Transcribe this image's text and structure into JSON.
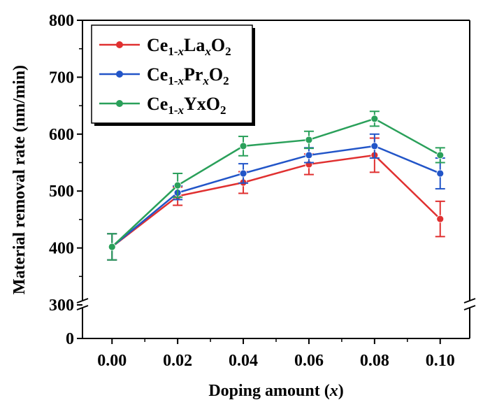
{
  "chart_data": {
    "type": "line",
    "title": "",
    "xlabel": "Doping amount (x)",
    "ylabel": "Material removal rate (nm/min)",
    "x": [
      0.0,
      0.02,
      0.04,
      0.06,
      0.08,
      0.1
    ],
    "x_tick_labels": [
      "0.00",
      "0.02",
      "0.04",
      "0.06",
      "0.08",
      "0.10"
    ],
    "y_tick_labels": [
      "0",
      "300",
      "400",
      "500",
      "600",
      "700",
      "800"
    ],
    "xlim": [
      -0.009,
      0.109
    ],
    "ylim": [
      0,
      800
    ],
    "y_axis_break": [
      0,
      300
    ],
    "grid": false,
    "legend_position": "top-left",
    "series": [
      {
        "name": "Ce1-xLaxO2",
        "color": "#e03030",
        "values": [
          402,
          491,
          515,
          547,
          563,
          451
        ],
        "errors": [
          23,
          16,
          19,
          18,
          30,
          31
        ]
      },
      {
        "name": "Ce1-xPrxO2",
        "color": "#2255c8",
        "values": [
          402,
          497,
          531,
          563,
          579,
          531
        ],
        "errors": [
          23,
          12,
          17,
          13,
          21,
          27
        ]
      },
      {
        "name": "Ce1-xYxO2",
        "color": "#2aa05a",
        "values": [
          402,
          510,
          579,
          590,
          627,
          563
        ],
        "errors": [
          23,
          21,
          17,
          15,
          13,
          13
        ]
      }
    ]
  }
}
